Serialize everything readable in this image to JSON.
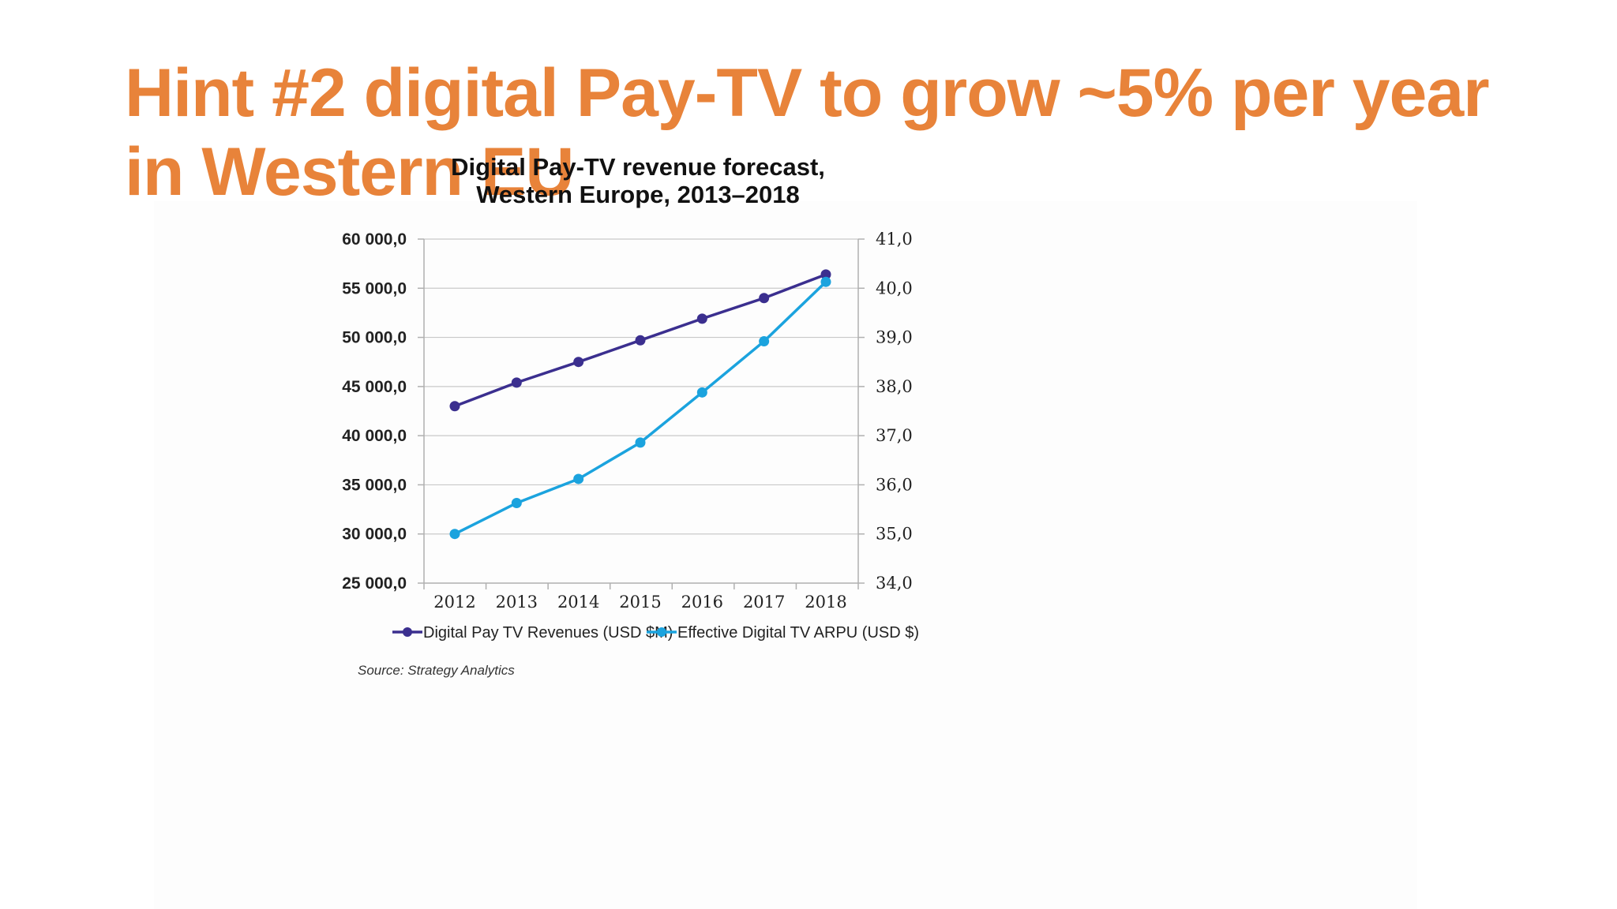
{
  "slide": {
    "title": "Hint #2 digital Pay-TV to grow ~5% per year in Western EU",
    "title_color": "#E8833A"
  },
  "chart_data": {
    "type": "line",
    "title_lines": [
      "Digital Pay-TV revenue forecast,",
      "Western Europe, 2013–2018"
    ],
    "categories": [
      "2012",
      "2013",
      "2014",
      "2015",
      "2016",
      "2017",
      "2018"
    ],
    "y_left": {
      "ylim": [
        25000,
        60000
      ],
      "tick_values": [
        25000,
        30000,
        35000,
        40000,
        45000,
        50000,
        55000,
        60000
      ],
      "tick_labels": [
        "25 000,0",
        "30 000,0",
        "35 000,0",
        "40 000,0",
        "45 000,0",
        "50 000,0",
        "55 000,0",
        "60 000,0"
      ]
    },
    "y_right": {
      "ylim": [
        34.0,
        41.0
      ],
      "tick_values": [
        34,
        35,
        36,
        37,
        38,
        39,
        40,
        41
      ],
      "tick_labels": [
        "34,0",
        "35,0",
        "36,0",
        "37,0",
        "38,0",
        "39,0",
        "40,0",
        "41,0"
      ]
    },
    "series": [
      {
        "name": "Digital Pay TV Revenues (USD $M)",
        "axis": "left",
        "color": "#3B2F8F",
        "values": [
          43000,
          45400,
          47500,
          49700,
          51900,
          54000,
          56400
        ]
      },
      {
        "name": "Effective Digital TV ARPU (USD $)",
        "axis": "right",
        "color": "#1BA3DE",
        "values": [
          35.0,
          35.63,
          36.12,
          36.86,
          37.88,
          38.92,
          40.13
        ]
      }
    ],
    "grid": true,
    "legend_position": "bottom",
    "source": "Source: Strategy Analytics"
  }
}
